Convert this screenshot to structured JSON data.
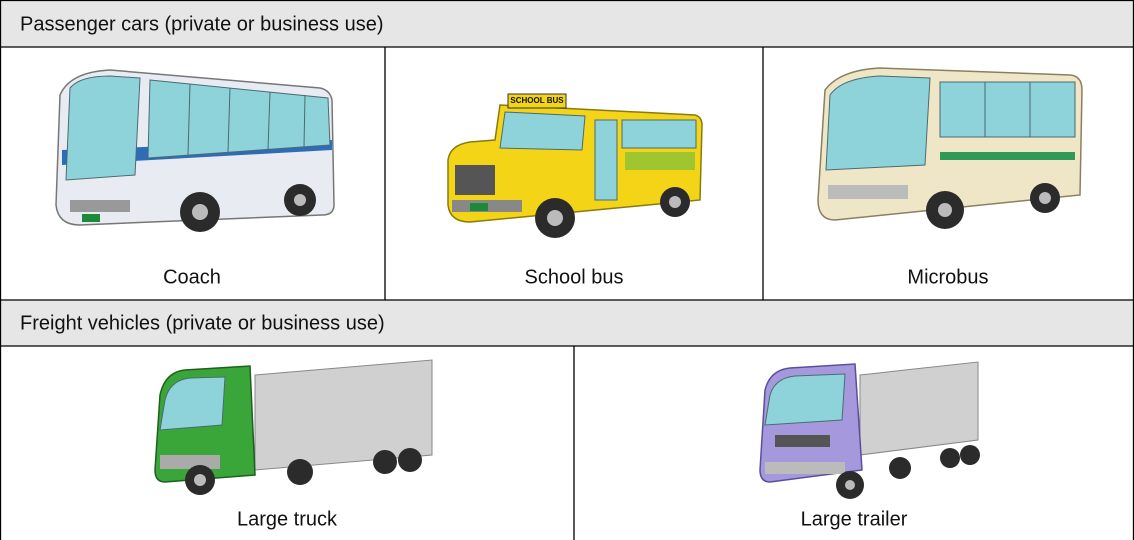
{
  "sections": [
    {
      "title": "Passenger cars (private or business use)",
      "items": [
        {
          "label": "Coach"
        },
        {
          "label": "School bus",
          "sign": "SCHOOL BUS"
        },
        {
          "label": "Microbus"
        }
      ]
    },
    {
      "title": "Freight vehicles (private or business use)",
      "items": [
        {
          "label": "Large truck"
        },
        {
          "label": "Large trailer"
        }
      ]
    }
  ]
}
